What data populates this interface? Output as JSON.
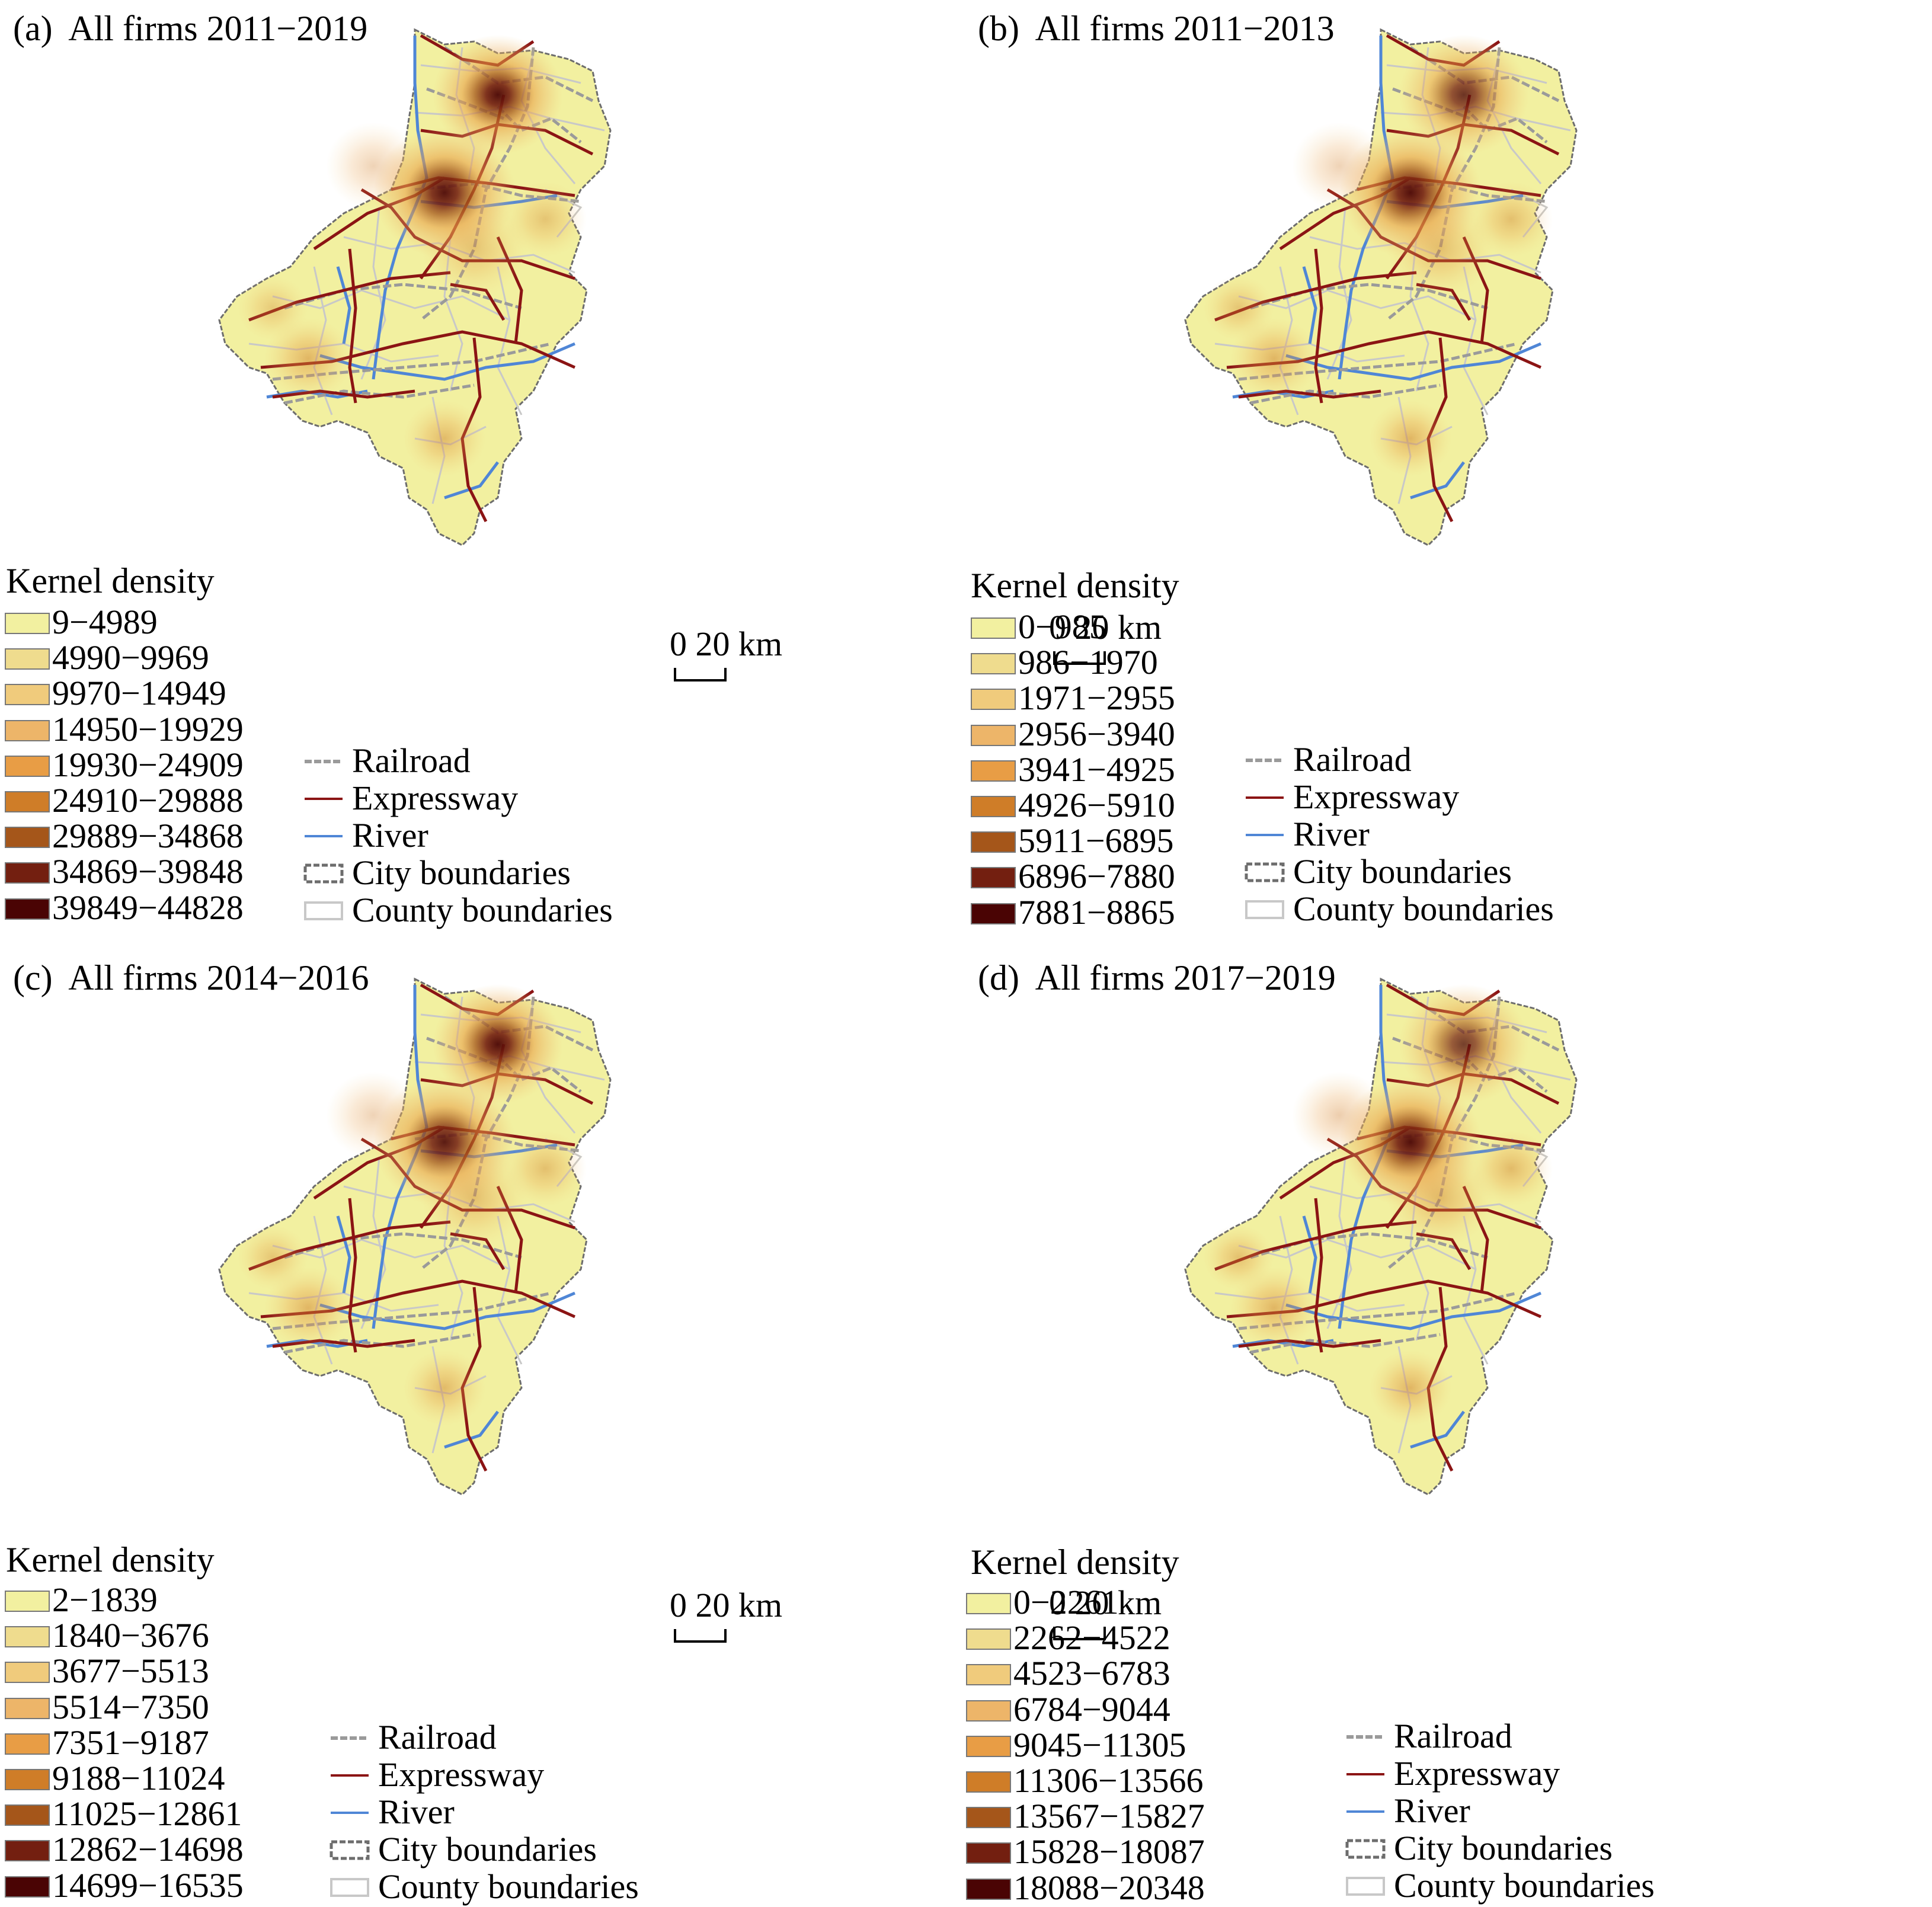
{
  "panels": [
    {
      "id": "a",
      "title": "(a)  All firms 2011−2019",
      "legend_title": "Kernel density",
      "classes": [
        "9−4989",
        "4990−9969",
        "9970−14949",
        "14950−19929",
        "19930−24909",
        "24910−29888",
        "29889−34868",
        "34869−39848",
        "39849−44828"
      ],
      "hotspots": [
        0.95,
        0.93,
        0.6,
        0.55,
        0.45,
        0.4,
        0.45,
        0.4
      ]
    },
    {
      "id": "b",
      "title": "(b)  All firms 2011−2013",
      "legend_title": "Kernel density",
      "classes": [
        "0−985",
        "986−1970",
        "1971−2955",
        "2956−3940",
        "3941−4925",
        "4926−5910",
        "5911−6895",
        "6896−7880",
        "7881−8865"
      ],
      "hotspots": [
        0.8,
        0.95,
        0.6,
        0.6,
        0.5,
        0.4,
        0.5,
        0.45
      ]
    },
    {
      "id": "c",
      "title": "(c)  All firms 2014−2016",
      "legend_title": "Kernel density",
      "classes": [
        "2−1839",
        "1840−3676",
        "3677−5513",
        "5514−7350",
        "7351−9187",
        "9188−11024",
        "11025−12861",
        "12862−14698",
        "14699−16535"
      ],
      "hotspots": [
        0.95,
        0.9,
        0.6,
        0.55,
        0.5,
        0.4,
        0.5,
        0.45
      ]
    },
    {
      "id": "d",
      "title": "(d)  All firms 2017−2019",
      "legend_title": "Kernel density",
      "classes": [
        "0−2261",
        "2262−4522",
        "4523−6783",
        "6784−9044",
        "9045−11305",
        "11306−13566",
        "13567−15827",
        "15828−18087",
        "18088−20348"
      ],
      "hotspots": [
        0.75,
        0.95,
        0.6,
        0.6,
        0.55,
        0.45,
        0.55,
        0.5
      ]
    }
  ],
  "class_colors": [
    "#f2f0a0",
    "#efdc8e",
    "#f0cb7c",
    "#edb569",
    "#e89d45",
    "#cf7d28",
    "#a5561a",
    "#731f10",
    "#4a0404"
  ],
  "symbols": {
    "railroad": "Railroad",
    "expressway": "Expressway",
    "river": "River",
    "city_boundaries": "City boundaries",
    "county_boundaries": "County boundaries"
  },
  "scale": {
    "zero": "0",
    "value": "20",
    "unit": "km"
  },
  "colors": {
    "expressway": "#8b1414",
    "river": "#4f86d6",
    "railroad": "#9a9a9a",
    "city_boundary": "#6d6d6d",
    "county_boundary": "#c8c8c8"
  }
}
